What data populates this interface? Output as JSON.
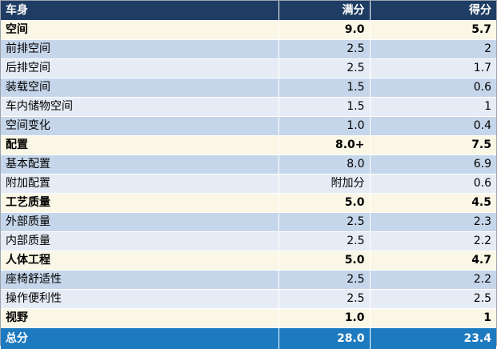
{
  "table": {
    "headers": [
      "车身",
      "满分",
      "得分"
    ],
    "rows": [
      {
        "type": "cat",
        "label": "空间",
        "full": "9.0",
        "score": "5.7"
      },
      {
        "type": "sub",
        "label": "前排空间",
        "full": "2.5",
        "score": "2"
      },
      {
        "type": "sub",
        "label": "后排空间",
        "full": "2.5",
        "score": "1.7"
      },
      {
        "type": "sub",
        "label": "装载空间",
        "full": "1.5",
        "score": "0.6"
      },
      {
        "type": "sub",
        "label": "车内储物空间",
        "full": "1.5",
        "score": "1"
      },
      {
        "type": "sub",
        "label": "空间变化",
        "full": "1.0",
        "score": "0.4"
      },
      {
        "type": "cat",
        "label": "配置",
        "full": "8.0+",
        "score": "7.5"
      },
      {
        "type": "sub",
        "label": "基本配置",
        "full": "8.0",
        "score": "6.9"
      },
      {
        "type": "sub",
        "label": "附加配置",
        "full": "附加分",
        "score": "0.6"
      },
      {
        "type": "cat",
        "label": "工艺质量",
        "full": "5.0",
        "score": "4.5"
      },
      {
        "type": "sub",
        "label": "外部质量",
        "full": "2.5",
        "score": "2.3"
      },
      {
        "type": "sub",
        "label": "内部质量",
        "full": "2.5",
        "score": "2.2"
      },
      {
        "type": "cat",
        "label": "人体工程",
        "full": "5.0",
        "score": "4.7"
      },
      {
        "type": "sub",
        "label": "座椅舒适性",
        "full": "2.5",
        "score": "2.2"
      },
      {
        "type": "sub",
        "label": "操作便利性",
        "full": "2.5",
        "score": "2.5"
      },
      {
        "type": "cat",
        "label": "视野",
        "full": "1.0",
        "score": "1"
      }
    ],
    "total": {
      "label": "总分",
      "full": "28.0",
      "score": "23.4"
    }
  },
  "colors": {
    "header_bg": "#1f3d64",
    "category_bg": "#faf7e6",
    "sub_bg_dark": "#c6d6ea",
    "sub_bg_light": "#e6ecf5",
    "total_bg": "#1e7ac0"
  }
}
